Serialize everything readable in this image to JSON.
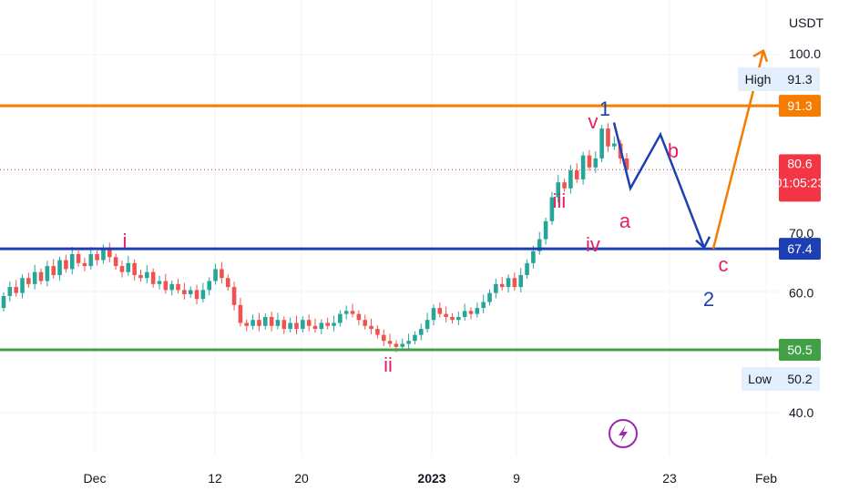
{
  "chart_data": {
    "type": "candlestick",
    "currency": "USDT",
    "x_ticks": [
      "Dec",
      "12",
      "20",
      "2023",
      "9",
      "23",
      "Feb"
    ],
    "y_ticks": [
      "100.0",
      "70.0",
      "60.0",
      "40.0"
    ],
    "ylim": [
      32,
      105
    ],
    "price_levels": [
      {
        "value": 91.3,
        "label": "91.3",
        "color": "#f57c00"
      },
      {
        "value": 67.4,
        "label": "67.4",
        "color": "#1e3fb4"
      },
      {
        "value": 50.5,
        "label": "50.5",
        "color": "#43a047"
      }
    ],
    "current_price": {
      "value": 80.6,
      "label": "80.6",
      "countdown": "01:05:23",
      "color": "#f23645"
    },
    "high": {
      "label": "High",
      "value": "91.3"
    },
    "low": {
      "label": "Low",
      "value": "50.2"
    },
    "candles_close": [
      59.5,
      61.0,
      60.0,
      62.5,
      61.5,
      63.5,
      62.0,
      64.5,
      63.0,
      65.5,
      64.0,
      66.5,
      65.0,
      64.5,
      66.5,
      65.5,
      67.2,
      66.0,
      64.5,
      63.5,
      65.0,
      63.0,
      62.5,
      63.5,
      61.5,
      62.0,
      60.5,
      61.5,
      60.5,
      59.8,
      60.5,
      59.0,
      60.5,
      62.0,
      64.0,
      62.5,
      61.0,
      58.0,
      55.0,
      54.5,
      55.5,
      54.5,
      56.0,
      54.5,
      55.5,
      54.0,
      55.0,
      54.0,
      55.5,
      54.5,
      54.0,
      55.0,
      54.5,
      55.0,
      56.5,
      57.0,
      56.5,
      55.5,
      54.5,
      54.0,
      53.0,
      52.0,
      51.5,
      51.0,
      51.5,
      52.0,
      53.0,
      54.0,
      55.5,
      57.5,
      56.5,
      56.0,
      55.5,
      56.0,
      57.0,
      56.5,
      57.5,
      58.5,
      60.0,
      61.5,
      61.0,
      62.5,
      61.0,
      63.0,
      65.0,
      67.0,
      69.0,
      72.0,
      76.0,
      78.5,
      77.5,
      80.5,
      79.0,
      83.0,
      81.0,
      82.5,
      87.5,
      84.5,
      85.0,
      82.5,
      80.6
    ],
    "wave_labels": [
      {
        "text": "i",
        "color": "#e91e63"
      },
      {
        "text": "ii",
        "color": "#e91e63"
      },
      {
        "text": "iii",
        "color": "#e91e63"
      },
      {
        "text": "iv",
        "color": "#e91e63"
      },
      {
        "text": "v",
        "color": "#e91e63"
      },
      {
        "text": "1",
        "color": "#1e3fb4"
      },
      {
        "text": "a",
        "color": "#e91e63"
      },
      {
        "text": "b",
        "color": "#e91e63"
      },
      {
        "text": "c",
        "color": "#e91e63"
      },
      {
        "text": "2",
        "color": "#1e3fb4"
      }
    ],
    "projection_blue": [
      88.5,
      77.5,
      86.5,
      67.6
    ],
    "projection_orange": [
      67.4,
      100.5
    ],
    "icon": "lightning-icon",
    "up_color": "#26a69a",
    "down_color": "#ef5350"
  }
}
